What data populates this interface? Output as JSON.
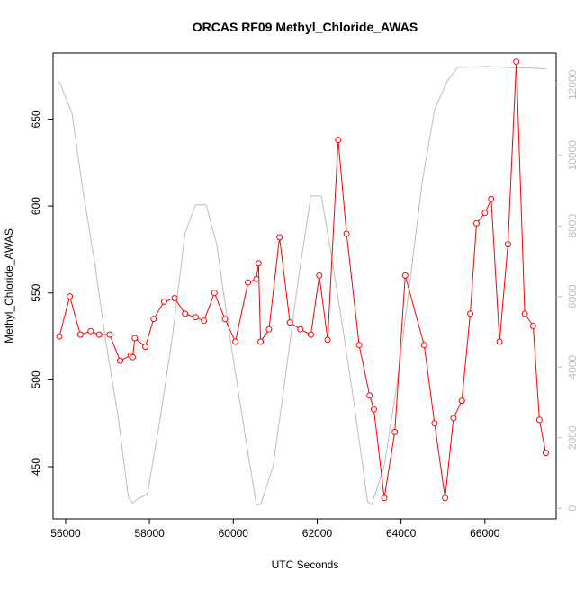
{
  "chart_data": {
    "type": "line",
    "title": "ORCAS RF09 Methyl_Chloride_AWAS",
    "xlabel": "UTC Seconds",
    "ylabel": "Methyl_Chloride_AWAS",
    "xlim": [
      55700,
      67700
    ],
    "ylim": [
      420,
      688
    ],
    "y2lim": [
      -300,
      12900
    ],
    "x_ticks": [
      56000,
      58000,
      60000,
      62000,
      64000,
      66000
    ],
    "y_ticks": [
      450,
      500,
      550,
      600,
      650
    ],
    "y2_ticks": [
      0,
      2000,
      4000,
      6000,
      8000,
      10000,
      12000
    ],
    "grid": false,
    "legend": "none",
    "colors": {
      "primary": "#ff0000",
      "secondary": "#bebebe",
      "axis": "#000000",
      "axis2": "#bebebe"
    },
    "series": [
      {
        "axis": "left",
        "style": "line+points",
        "x": [
          55850,
          56100,
          56350,
          56600,
          56800,
          57050,
          57300,
          57550,
          57600,
          57650,
          57900,
          58100,
          58350,
          58600,
          58850,
          59100,
          59300,
          59550,
          59800,
          60050,
          60350,
          60550,
          60600,
          60650,
          60850,
          61100,
          61350,
          61600,
          61850,
          62050,
          62250,
          62500,
          62700,
          63000,
          63250,
          63350,
          63600,
          63850,
          64100,
          64550,
          64800,
          65050,
          65250,
          65450,
          65650,
          65800,
          66000,
          66150,
          66350,
          66550,
          66750,
          66950,
          67150,
          67300,
          67450
        ],
        "y": [
          525,
          548,
          526,
          528,
          526,
          526,
          511,
          514,
          513,
          524,
          519,
          535,
          545,
          547,
          538,
          536,
          534,
          550,
          535,
          522,
          556,
          558,
          567,
          522,
          529,
          582,
          533,
          529,
          526,
          560,
          523,
          638,
          584,
          520,
          491,
          483,
          432,
          470,
          560,
          520,
          475,
          432,
          478,
          488,
          538,
          590,
          596,
          604,
          522,
          578,
          683,
          538,
          531,
          477,
          458
        ]
      },
      {
        "axis": "right",
        "style": "line",
        "x": [
          55850,
          56150,
          56400,
          56700,
          56950,
          57250,
          57500,
          57600,
          57700,
          57950,
          58250,
          58550,
          58850,
          59100,
          59350,
          59600,
          59900,
          60250,
          60550,
          60650,
          60950,
          61250,
          61550,
          61850,
          62100,
          62350,
          62600,
          62900,
          63200,
          63300,
          63600,
          63900,
          64200,
          64500,
          64800,
          65100,
          65350,
          65600,
          66000,
          66400,
          66800,
          67200,
          67450
        ],
        "y": [
          12100,
          11200,
          9100,
          6900,
          4800,
          2600,
          300,
          150,
          250,
          400,
          2500,
          4900,
          7800,
          8600,
          8600,
          7500,
          5000,
          2300,
          100,
          100,
          1200,
          3800,
          6500,
          8850,
          8850,
          7100,
          5200,
          2800,
          200,
          100,
          1200,
          3500,
          6300,
          9200,
          11300,
          12100,
          12500,
          12500,
          12520,
          12500,
          12480,
          12470,
          12450
        ]
      }
    ]
  }
}
